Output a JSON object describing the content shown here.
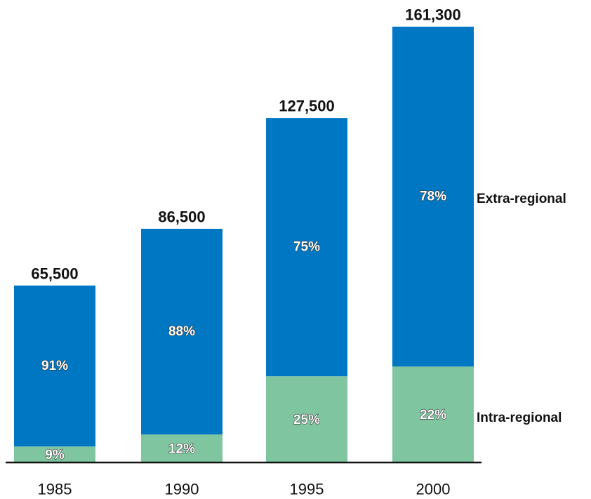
{
  "chart_data": {
    "type": "bar",
    "stacked": true,
    "categories": [
      "1985",
      "1990",
      "1995",
      "2000"
    ],
    "totals": [
      65500,
      86500,
      127500,
      161300
    ],
    "total_labels": [
      "65,500",
      "86,500",
      "127,500",
      "161,300"
    ],
    "series": [
      {
        "name": "Intra-regional",
        "color": "#7fc6a0",
        "percent_values": [
          9,
          12,
          25,
          22
        ],
        "percent_labels": [
          "9%",
          "12%",
          "25%",
          "22%"
        ]
      },
      {
        "name": "Extra-regional",
        "color": "#0077c2",
        "percent_values": [
          91,
          88,
          75,
          78
        ],
        "percent_labels": [
          "91%",
          "88%",
          "75%",
          "78%"
        ]
      }
    ],
    "ylim": [
      0,
      161300
    ],
    "grid": false,
    "legend_placement": "right, beside last bar segments"
  }
}
